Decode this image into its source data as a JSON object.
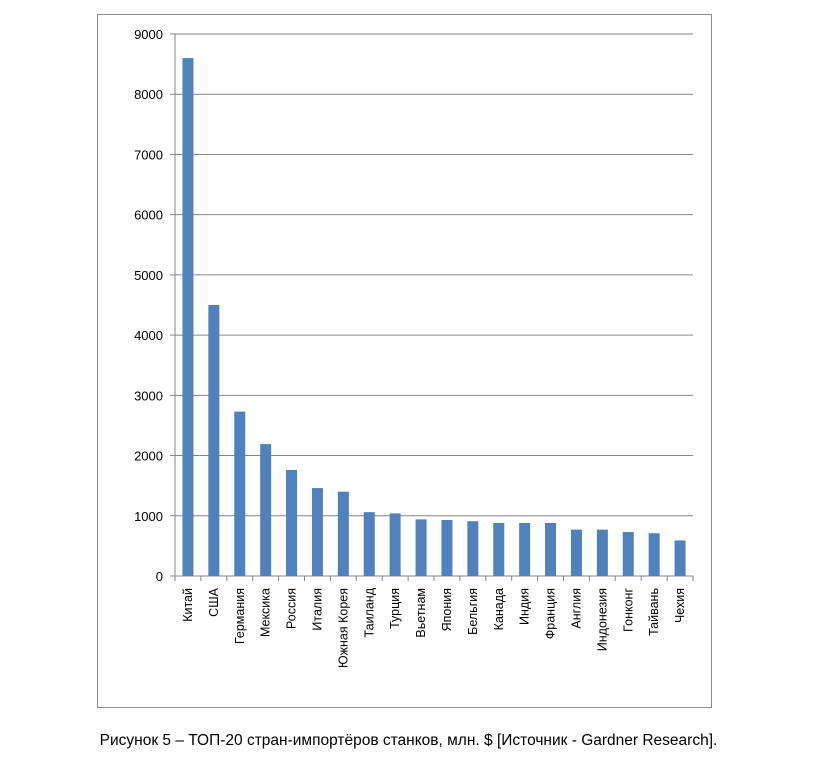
{
  "chart_data": {
    "type": "bar",
    "title": "",
    "xlabel": "",
    "ylabel": "",
    "ylim": [
      0,
      9000
    ],
    "yticks": [
      0,
      1000,
      2000,
      3000,
      4000,
      5000,
      6000,
      7000,
      8000,
      9000
    ],
    "grid": true,
    "color": "#4f81bd",
    "categories": [
      "Китай",
      "США",
      "Германия",
      "Мексика",
      "Россия",
      "Италия",
      "Южная Корея",
      "Таиланд",
      "Турция",
      "Вьетнам",
      "Япония",
      "Бельгия",
      "Канада",
      "Индия",
      "Франция",
      "Англия",
      "Индонезия",
      "Гонконг",
      "Тайвань",
      "Чехия"
    ],
    "values": [
      8600,
      4500,
      2730,
      2190,
      1760,
      1460,
      1400,
      1060,
      1040,
      940,
      930,
      910,
      880,
      880,
      880,
      770,
      770,
      730,
      710,
      590
    ]
  },
  "caption": "Рисунок 5 – ТОП-20 стран-импортёров станков, млн. $ [Источник - Gardner Research]."
}
